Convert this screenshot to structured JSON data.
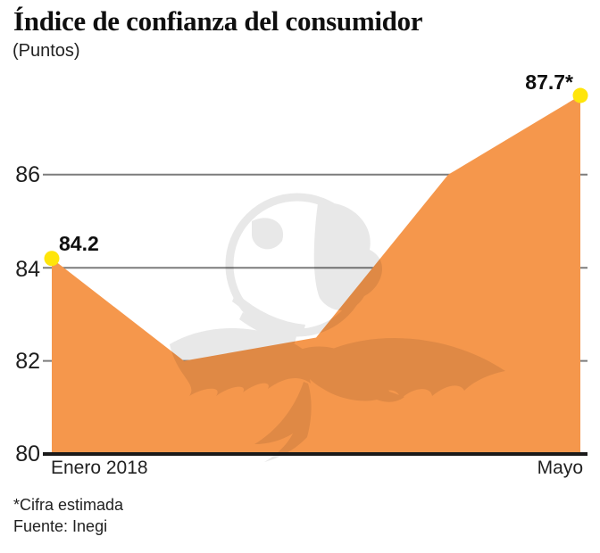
{
  "header": {
    "title": "Índice de confianza del consumidor",
    "subtitle": "(Puntos)"
  },
  "chart_data": {
    "type": "area",
    "title": "Índice de confianza del consumidor",
    "ylabel": "Puntos",
    "x": [
      "Enero 2018",
      "",
      "",
      "",
      "Mayo"
    ],
    "values": [
      84.2,
      82.0,
      82.5,
      86.0,
      87.7
    ],
    "ylim": [
      80,
      88
    ],
    "y_ticks": [
      80,
      82,
      84,
      86
    ],
    "grid": "horizontal",
    "markers": "first-and-last-point",
    "annotations": {
      "first": "84.2",
      "last": "87.7*"
    },
    "colors": {
      "area": "#F5974C",
      "marker": "#FFE50A",
      "gridline": "#7C7C7C",
      "axis": "#1A1A1A",
      "watermark": "#E8E8E8"
    }
  },
  "y_axis": {
    "ticks": [
      "86",
      "84",
      "82",
      "80"
    ]
  },
  "x_axis": {
    "left_label": "Enero 2018",
    "right_label": "Mayo"
  },
  "annotations": {
    "first_value": "84.2",
    "last_value": "87.7*"
  },
  "footer": {
    "note": "*Cifra estimada",
    "source": "Fuente: Inegi"
  },
  "watermark_icon": "eagle-over-globe"
}
